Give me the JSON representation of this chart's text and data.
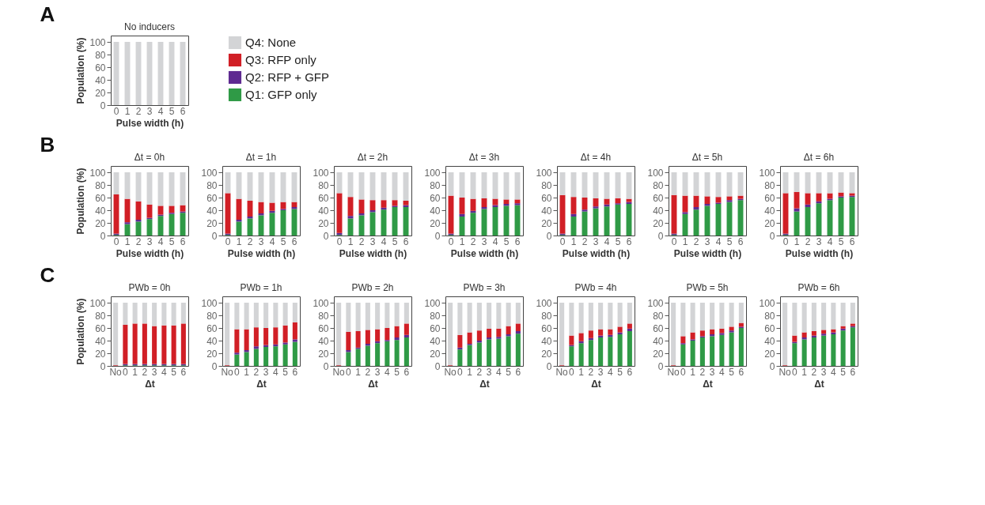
{
  "chart_data": [
    {
      "type": "bar",
      "stacked": true,
      "title": "No inducers",
      "xlabel": "Pulse width (h)",
      "ylabel": "Population (%)",
      "categories": [
        "0",
        "1",
        "2",
        "3",
        "4",
        "5",
        "6"
      ],
      "ylim": [
        0,
        110
      ],
      "yticks": [
        0,
        20,
        40,
        60,
        80,
        100
      ],
      "grid": false,
      "legend": "right",
      "annotations": [
        "A"
      ],
      "series": [
        {
          "name": "Q1: GFP only",
          "color": "#2f9a46",
          "values": [
            0,
            0,
            0,
            0,
            0,
            0,
            0
          ]
        },
        {
          "name": "Q2: RFP + GFP",
          "color": "#5e2a91",
          "values": [
            0,
            0,
            0,
            0,
            0,
            0,
            0
          ]
        },
        {
          "name": "Q3: RFP only",
          "color": "#d11f26",
          "values": [
            0,
            0,
            0,
            0,
            0,
            0,
            0
          ]
        },
        {
          "name": "Q4: None",
          "color": "#d3d4d6",
          "values": [
            100,
            100,
            100,
            100,
            100,
            100,
            100
          ]
        }
      ]
    },
    {
      "type": "bar",
      "stacked": true,
      "title": "Δt = 0h",
      "xlabel": "Pulse width (h)",
      "ylabel": "Population (%)",
      "categories": [
        "0",
        "1",
        "2",
        "3",
        "4",
        "5",
        "6"
      ],
      "ylim": [
        0,
        110
      ],
      "yticks": [
        0,
        20,
        40,
        60,
        80,
        100
      ],
      "grid": false,
      "annotations": [
        "B"
      ],
      "series": [
        {
          "color": "#2f9a46",
          "values": [
            1,
            18,
            22,
            26,
            31,
            34,
            36
          ]
        },
        {
          "color": "#5e2a91",
          "values": [
            2,
            3,
            3,
            2,
            2,
            2,
            2
          ]
        },
        {
          "color": "#d11f26",
          "values": [
            62,
            37,
            29,
            21,
            14,
            11,
            10
          ]
        },
        {
          "color": "#d3d4d6",
          "values": [
            35,
            42,
            46,
            51,
            53,
            53,
            52
          ]
        }
      ]
    },
    {
      "type": "bar",
      "stacked": true,
      "title": "Δt = 1h",
      "xlabel": "Pulse width (h)",
      "categories": [
        "0",
        "1",
        "2",
        "3",
        "4",
        "5",
        "6"
      ],
      "ylim": [
        0,
        110
      ],
      "yticks": [
        0,
        20,
        40,
        60,
        80,
        100
      ],
      "grid": false,
      "series": [
        {
          "color": "#2f9a46",
          "values": [
            1,
            22,
            27,
            32,
            36,
            40,
            42
          ]
        },
        {
          "color": "#5e2a91",
          "values": [
            2,
            3,
            3,
            3,
            3,
            2,
            3
          ]
        },
        {
          "color": "#d11f26",
          "values": [
            64,
            33,
            25,
            18,
            13,
            11,
            8
          ]
        },
        {
          "color": "#d3d4d6",
          "values": [
            33,
            42,
            45,
            47,
            48,
            47,
            47
          ]
        }
      ]
    },
    {
      "type": "bar",
      "stacked": true,
      "title": "Δt = 2h",
      "xlabel": "Pulse width (h)",
      "categories": [
        "0",
        "1",
        "2",
        "3",
        "4",
        "5",
        "6"
      ],
      "ylim": [
        0,
        110
      ],
      "yticks": [
        0,
        20,
        40,
        60,
        80,
        100
      ],
      "grid": false,
      "series": [
        {
          "color": "#2f9a46",
          "values": [
            1,
            27,
            32,
            37,
            41,
            45,
            45
          ]
        },
        {
          "color": "#5e2a91",
          "values": [
            3,
            4,
            3,
            3,
            3,
            2,
            3
          ]
        },
        {
          "color": "#d11f26",
          "values": [
            63,
            30,
            22,
            16,
            12,
            9,
            7
          ]
        },
        {
          "color": "#d3d4d6",
          "values": [
            33,
            39,
            43,
            44,
            44,
            44,
            45
          ]
        }
      ]
    },
    {
      "type": "bar",
      "stacked": true,
      "title": "Δt = 3h",
      "xlabel": "Pulse width (h)",
      "categories": [
        "0",
        "1",
        "2",
        "3",
        "4",
        "5",
        "6"
      ],
      "ylim": [
        0,
        110
      ],
      "yticks": [
        0,
        20,
        40,
        60,
        80,
        100
      ],
      "grid": false,
      "series": [
        {
          "color": "#2f9a46",
          "values": [
            1,
            30,
            36,
            42,
            45,
            47,
            48
          ]
        },
        {
          "color": "#5e2a91",
          "values": [
            2,
            4,
            3,
            3,
            3,
            3,
            3
          ]
        },
        {
          "color": "#d11f26",
          "values": [
            60,
            26,
            19,
            14,
            10,
            7,
            6
          ]
        },
        {
          "color": "#d3d4d6",
          "values": [
            37,
            40,
            42,
            41,
            42,
            43,
            43
          ]
        }
      ]
    },
    {
      "type": "bar",
      "stacked": true,
      "title": "Δt = 4h",
      "xlabel": "Pulse width (h)",
      "categories": [
        "0",
        "1",
        "2",
        "3",
        "4",
        "5",
        "6"
      ],
      "ylim": [
        0,
        110
      ],
      "yticks": [
        0,
        20,
        40,
        60,
        80,
        100
      ],
      "grid": false,
      "series": [
        {
          "color": "#2f9a46",
          "values": [
            1,
            30,
            38,
            43,
            46,
            49,
            50
          ]
        },
        {
          "color": "#5e2a91",
          "values": [
            2,
            4,
            3,
            3,
            3,
            2,
            3
          ]
        },
        {
          "color": "#d11f26",
          "values": [
            61,
            27,
            19,
            13,
            9,
            8,
            5
          ]
        },
        {
          "color": "#d3d4d6",
          "values": [
            36,
            39,
            40,
            41,
            42,
            41,
            42
          ]
        }
      ]
    },
    {
      "type": "bar",
      "stacked": true,
      "title": "Δt = 5h",
      "xlabel": "Pulse width (h)",
      "categories": [
        "0",
        "1",
        "2",
        "3",
        "4",
        "5",
        "6"
      ],
      "ylim": [
        0,
        110
      ],
      "yticks": [
        0,
        20,
        40,
        60,
        80,
        100
      ],
      "grid": false,
      "series": [
        {
          "color": "#2f9a46",
          "values": [
            1,
            34,
            41,
            47,
            50,
            53,
            56
          ]
        },
        {
          "color": "#5e2a91",
          "values": [
            2,
            3,
            4,
            3,
            2,
            3,
            2
          ]
        },
        {
          "color": "#d11f26",
          "values": [
            61,
            26,
            18,
            12,
            9,
            6,
            5
          ]
        },
        {
          "color": "#d3d4d6",
          "values": [
            36,
            37,
            37,
            38,
            39,
            38,
            37
          ]
        }
      ]
    },
    {
      "type": "bar",
      "stacked": true,
      "title": "Δt = 6h",
      "xlabel": "Pulse width (h)",
      "categories": [
        "0",
        "1",
        "2",
        "3",
        "4",
        "5",
        "6"
      ],
      "ylim": [
        0,
        110
      ],
      "yticks": [
        0,
        20,
        40,
        60,
        80,
        100
      ],
      "grid": false,
      "series": [
        {
          "color": "#2f9a46",
          "values": [
            1,
            38,
            45,
            51,
            56,
            60,
            61
          ]
        },
        {
          "color": "#5e2a91",
          "values": [
            2,
            5,
            4,
            3,
            2,
            2,
            2
          ]
        },
        {
          "color": "#d11f26",
          "values": [
            64,
            26,
            18,
            13,
            9,
            6,
            4
          ]
        },
        {
          "color": "#d3d4d6",
          "values": [
            33,
            31,
            33,
            33,
            33,
            32,
            33
          ]
        }
      ]
    },
    {
      "type": "bar",
      "stacked": true,
      "title": "PWb = 0h",
      "xlabel": "Δt",
      "ylabel": "Population (%)",
      "categories": [
        "No",
        "0",
        "1",
        "2",
        "3",
        "4",
        "5",
        "6"
      ],
      "ylim": [
        0,
        110
      ],
      "yticks": [
        0,
        20,
        40,
        60,
        80,
        100
      ],
      "grid": false,
      "annotations": [
        "C"
      ],
      "series": [
        {
          "color": "#2f9a46",
          "values": [
            0,
            1,
            1,
            1,
            1,
            1,
            1,
            1
          ]
        },
        {
          "color": "#5e2a91",
          "values": [
            0,
            2,
            2,
            2,
            2,
            2,
            2,
            2
          ]
        },
        {
          "color": "#d11f26",
          "values": [
            1,
            62,
            64,
            64,
            60,
            61,
            61,
            64
          ]
        },
        {
          "color": "#d3d4d6",
          "values": [
            99,
            35,
            33,
            33,
            37,
            36,
            36,
            33
          ]
        }
      ]
    },
    {
      "type": "bar",
      "stacked": true,
      "title": "PWb = 1h",
      "xlabel": "Δt",
      "categories": [
        "No",
        "0",
        "1",
        "2",
        "3",
        "4",
        "5",
        "6"
      ],
      "ylim": [
        0,
        110
      ],
      "yticks": [
        0,
        20,
        40,
        60,
        80,
        100
      ],
      "grid": false,
      "series": [
        {
          "color": "#2f9a46",
          "values": [
            0,
            18,
            22,
            27,
            30,
            31,
            34,
            38
          ]
        },
        {
          "color": "#5e2a91",
          "values": [
            0,
            3,
            3,
            4,
            3,
            3,
            3,
            4
          ]
        },
        {
          "color": "#d11f26",
          "values": [
            1,
            37,
            33,
            30,
            27,
            27,
            27,
            27
          ]
        },
        {
          "color": "#d3d4d6",
          "values": [
            99,
            42,
            42,
            39,
            40,
            39,
            36,
            31
          ]
        }
      ]
    },
    {
      "type": "bar",
      "stacked": true,
      "title": "PWb = 2h",
      "xlabel": "Δt",
      "categories": [
        "No",
        "0",
        "1",
        "2",
        "3",
        "4",
        "5",
        "6"
      ],
      "ylim": [
        0,
        110
      ],
      "yticks": [
        0,
        20,
        40,
        60,
        80,
        100
      ],
      "grid": false,
      "series": [
        {
          "color": "#2f9a46",
          "values": [
            0,
            22,
            27,
            32,
            36,
            39,
            41,
            45
          ]
        },
        {
          "color": "#5e2a91",
          "values": [
            0,
            3,
            2,
            3,
            3,
            2,
            4,
            4
          ]
        },
        {
          "color": "#d11f26",
          "values": [
            1,
            29,
            26,
            22,
            19,
            19,
            18,
            18
          ]
        },
        {
          "color": "#d3d4d6",
          "values": [
            99,
            46,
            45,
            43,
            42,
            40,
            37,
            33
          ]
        }
      ]
    },
    {
      "type": "bar",
      "stacked": true,
      "title": "PWb = 3h",
      "xlabel": "Δt",
      "categories": [
        "No",
        "0",
        "1",
        "2",
        "3",
        "4",
        "5",
        "6"
      ],
      "ylim": [
        0,
        110
      ],
      "yticks": [
        0,
        20,
        40,
        60,
        80,
        100
      ],
      "grid": false,
      "series": [
        {
          "color": "#2f9a46",
          "values": [
            0,
            26,
            33,
            37,
            42,
            43,
            47,
            51
          ]
        },
        {
          "color": "#5e2a91",
          "values": [
            0,
            3,
            2,
            3,
            3,
            3,
            3,
            4
          ]
        },
        {
          "color": "#d11f26",
          "values": [
            1,
            20,
            18,
            16,
            14,
            13,
            13,
            12
          ]
        },
        {
          "color": "#d3d4d6",
          "values": [
            99,
            51,
            47,
            44,
            41,
            41,
            37,
            33
          ]
        }
      ]
    },
    {
      "type": "bar",
      "stacked": true,
      "title": "PWb = 4h",
      "xlabel": "Δt",
      "categories": [
        "No",
        "0",
        "1",
        "2",
        "3",
        "4",
        "5",
        "6"
      ],
      "ylim": [
        0,
        110
      ],
      "yticks": [
        0,
        20,
        40,
        60,
        80,
        100
      ],
      "grid": false,
      "series": [
        {
          "color": "#2f9a46",
          "values": [
            0,
            31,
            36,
            41,
            45,
            46,
            50,
            55
          ]
        },
        {
          "color": "#5e2a91",
          "values": [
            0,
            2,
            3,
            3,
            3,
            3,
            3,
            4
          ]
        },
        {
          "color": "#d11f26",
          "values": [
            1,
            15,
            13,
            12,
            10,
            9,
            9,
            8
          ]
        },
        {
          "color": "#d3d4d6",
          "values": [
            99,
            52,
            48,
            44,
            42,
            42,
            38,
            33
          ]
        }
      ]
    },
    {
      "type": "bar",
      "stacked": true,
      "title": "PWb = 5h",
      "xlabel": "Δt",
      "categories": [
        "No",
        "0",
        "1",
        "2",
        "3",
        "4",
        "5",
        "6"
      ],
      "ylim": [
        0,
        110
      ],
      "yticks": [
        0,
        20,
        40,
        60,
        80,
        100
      ],
      "grid": false,
      "series": [
        {
          "color": "#2f9a46",
          "values": [
            0,
            34,
            40,
            45,
            47,
            49,
            53,
            60
          ]
        },
        {
          "color": "#5e2a91",
          "values": [
            0,
            2,
            2,
            2,
            3,
            3,
            3,
            2
          ]
        },
        {
          "color": "#d11f26",
          "values": [
            1,
            11,
            11,
            9,
            8,
            7,
            6,
            6
          ]
        },
        {
          "color": "#d3d4d6",
          "values": [
            99,
            53,
            47,
            44,
            42,
            41,
            38,
            32
          ]
        }
      ]
    },
    {
      "type": "bar",
      "stacked": true,
      "title": "PWb = 6h",
      "xlabel": "Δt",
      "categories": [
        "No",
        "0",
        "1",
        "2",
        "3",
        "4",
        "5",
        "6"
      ],
      "ylim": [
        0,
        110
      ],
      "yticks": [
        0,
        20,
        40,
        60,
        80,
        100
      ],
      "grid": false,
      "series": [
        {
          "color": "#2f9a46",
          "values": [
            0,
            36,
            42,
            45,
            48,
            50,
            56,
            61
          ]
        },
        {
          "color": "#5e2a91",
          "values": [
            0,
            2,
            3,
            3,
            3,
            3,
            3,
            2
          ]
        },
        {
          "color": "#d11f26",
          "values": [
            1,
            10,
            8,
            7,
            6,
            5,
            4,
            4
          ]
        },
        {
          "color": "#d3d4d6",
          "values": [
            99,
            52,
            47,
            45,
            43,
            42,
            37,
            33
          ]
        }
      ]
    }
  ]
}
